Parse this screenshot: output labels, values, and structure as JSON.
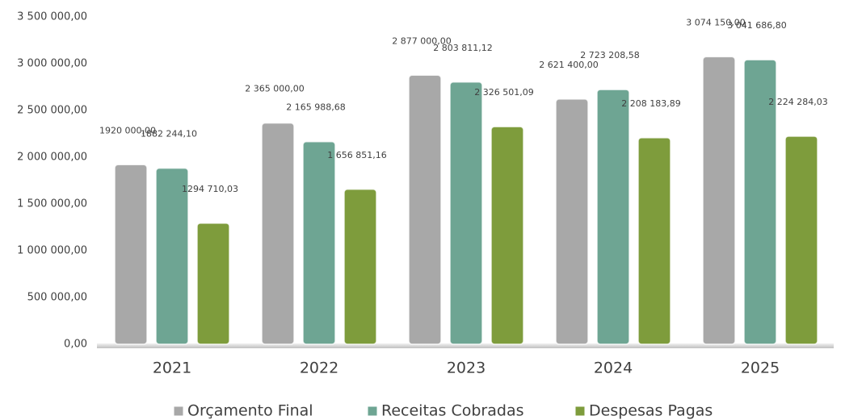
{
  "chart_data": {
    "type": "bar",
    "categories": [
      "2021",
      "2022",
      "2023",
      "2024",
      "2025"
    ],
    "series": [
      {
        "name": "Orçamento Final",
        "color": "#a8a8a8",
        "values": [
          1920000.0,
          2365000.0,
          2877000.0,
          2621400.0,
          3074150.0
        ],
        "value_labels": [
          "1920 000,00",
          "2 365 000,00",
          "2 877 000,00",
          "2 621 400,00",
          "3 074 150,00"
        ]
      },
      {
        "name": "Receitas Cobradas",
        "color": "#6ea593",
        "values": [
          1882244.1,
          2165988.68,
          2803811.12,
          2723208.58,
          3041686.8
        ],
        "value_labels": [
          "1882 244,10",
          "2 165 988,68",
          "2 803 811,12",
          "2 723 208,58",
          "3 041 686,80"
        ]
      },
      {
        "name": "Despesas Pagas",
        "color": "#7e9c3c",
        "values": [
          1294710.03,
          1656851.16,
          2326501.09,
          2208183.89,
          2224284.03
        ],
        "value_labels": [
          "1294 710,03",
          "1 656 851,16",
          "2 326 501,09",
          "2 208 183,89",
          "2 224 284,03"
        ]
      }
    ],
    "ylim": [
      0,
      3500000
    ],
    "yticks": [
      {
        "value": 0,
        "label": "0,00"
      },
      {
        "value": 500000,
        "label": "500 000,00"
      },
      {
        "value": 1000000,
        "label": "1 000 000,00"
      },
      {
        "value": 1500000,
        "label": "1 500 000,00"
      },
      {
        "value": 2000000,
        "label": "2 000 000,00"
      },
      {
        "value": 2500000,
        "label": "2 500 000,00"
      },
      {
        "value": 3000000,
        "label": "3 000 000,00"
      },
      {
        "value": 3500000,
        "label": "3 500 000,00"
      }
    ],
    "grid": false,
    "legend": "bottom"
  }
}
